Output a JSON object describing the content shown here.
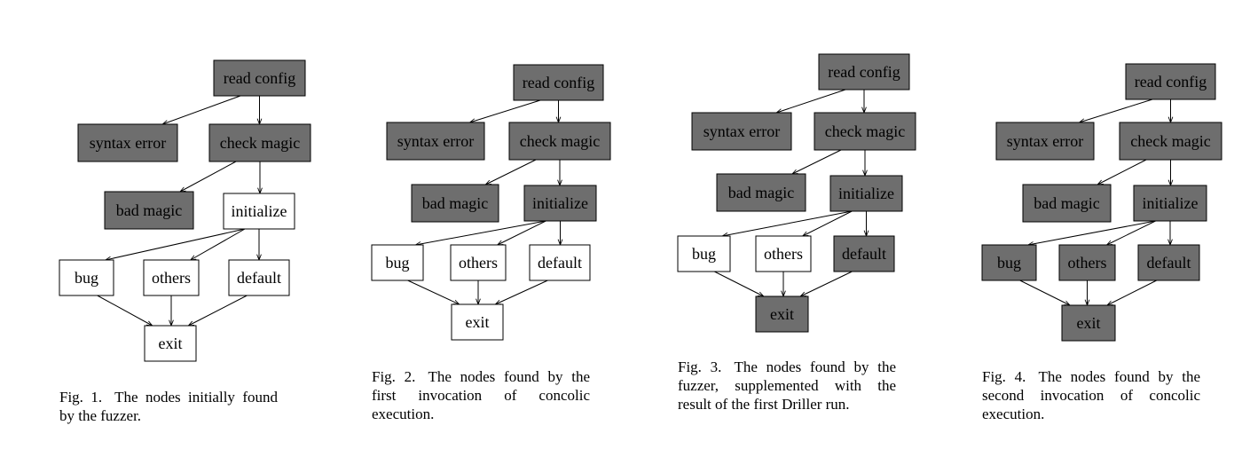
{
  "colors": {
    "found_fill": "#6e6e6e",
    "unfound_fill": "#ffffff",
    "stroke": "#000000"
  },
  "labels": {
    "read_config": "read config",
    "syntax_error": "syntax error",
    "check_magic": "check magic",
    "bad_magic": "bad magic",
    "initialize": "initialize",
    "bug": "bug",
    "others": "others",
    "default": "default",
    "exit": "exit"
  },
  "edges": [
    [
      "read_config",
      "syntax_error"
    ],
    [
      "read_config",
      "check_magic"
    ],
    [
      "check_magic",
      "bad_magic"
    ],
    [
      "check_magic",
      "initialize"
    ],
    [
      "initialize",
      "bug"
    ],
    [
      "initialize",
      "others"
    ],
    [
      "initialize",
      "default"
    ],
    [
      "bug",
      "exit"
    ],
    [
      "others",
      "exit"
    ],
    [
      "default",
      "exit"
    ]
  ],
  "figures": [
    {
      "caption_num": "Fig. 1.",
      "caption_text": "The nodes initially found by the fuzzer.",
      "found": [
        "read_config",
        "syntax_error",
        "check_magic",
        "bad_magic"
      ]
    },
    {
      "caption_num": "Fig. 2.",
      "caption_text": "The nodes found by the first invocation of concolic execution.",
      "found": [
        "read_config",
        "syntax_error",
        "check_magic",
        "bad_magic",
        "initialize"
      ]
    },
    {
      "caption_num": "Fig. 3.",
      "caption_text": "The nodes found by the fuzzer, supplemented with the result of the first Driller run.",
      "found": [
        "read_config",
        "syntax_error",
        "check_magic",
        "bad_magic",
        "initialize",
        "default",
        "exit"
      ]
    },
    {
      "caption_num": "Fig. 4.",
      "caption_text": "The nodes found by the second invocation of concolic execution.",
      "found": [
        "read_config",
        "syntax_error",
        "check_magic",
        "bad_magic",
        "initialize",
        "bug",
        "others",
        "default",
        "exit"
      ]
    }
  ]
}
